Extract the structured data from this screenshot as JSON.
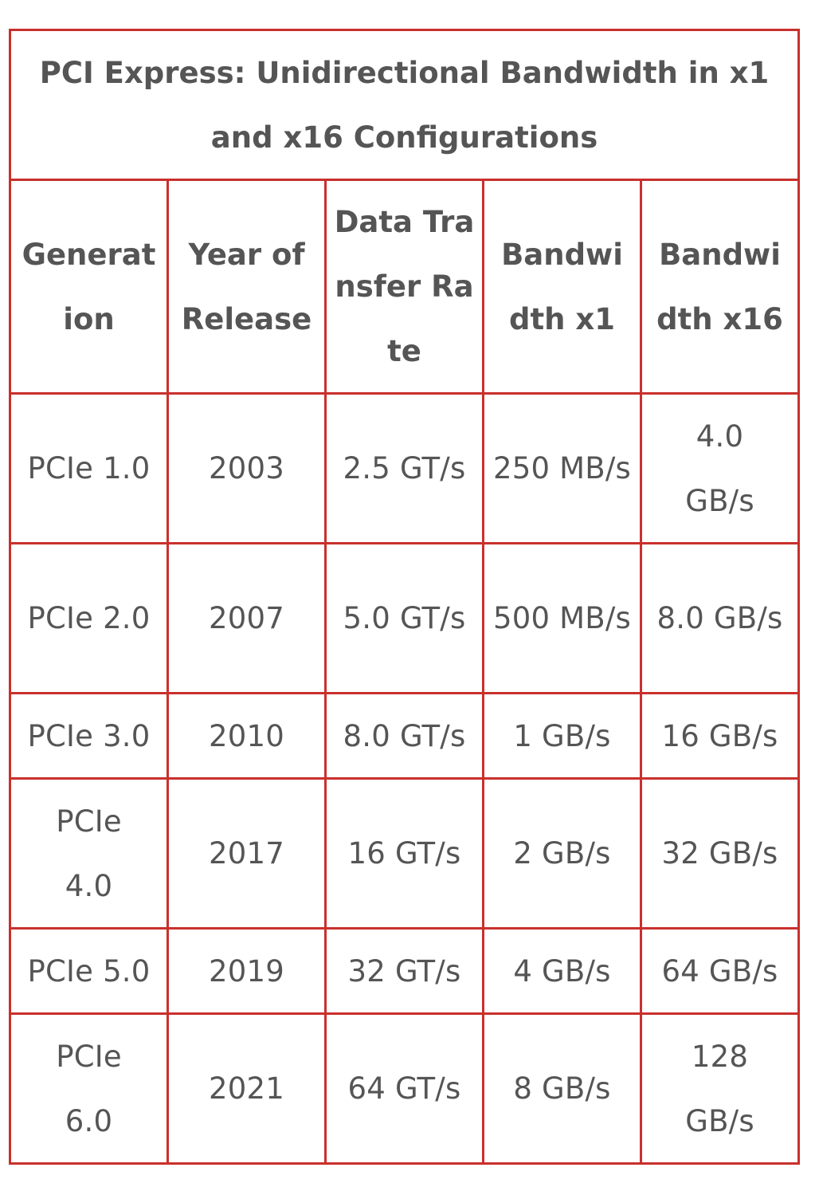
{
  "table": {
    "title": "PCI Express: Unidirectional Bandwidth in x1 and x16 Configurations",
    "headers": [
      "Generation",
      "Year of Release",
      "Data Transfer Rate",
      "Bandwidth x1",
      "Bandwidth x16"
    ],
    "rows": [
      [
        "PCIe 1.0",
        "2003",
        "2.5 GT/s",
        "250 MB/s",
        "4.0 GB/s"
      ],
      [
        "PCIe 2.0",
        "2007",
        "5.0 GT/s",
        "500 MB/s",
        "8.0 GB/s"
      ],
      [
        "PCIe 3.0",
        "2010",
        "8.0 GT/s",
        "1 GB/s",
        "16 GB/s"
      ],
      [
        "PCIe 4.0",
        "2017",
        "16 GT/s",
        "2 GB/s",
        "32 GB/s"
      ],
      [
        "PCIe 5.0",
        "2019",
        "32 GT/s",
        "4 GB/s",
        "64 GB/s"
      ],
      [
        "PCIe 6.0",
        "2021",
        "64 GT/s",
        "8 GB/s",
        "128 GB/s"
      ]
    ]
  },
  "colors": {
    "border": "#c9302c",
    "text": "#555555",
    "background": "#ffffff"
  }
}
